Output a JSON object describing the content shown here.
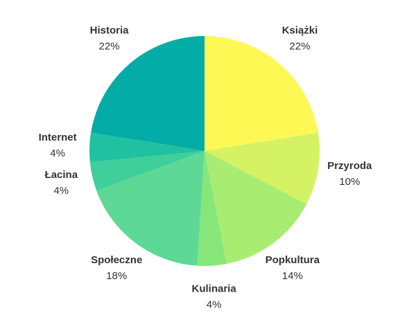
{
  "chart_data": {
    "type": "pie",
    "categories": [
      "Książki",
      "Przyroda",
      "Popkultura",
      "Kulinaria",
      "Społeczne",
      "Łacina",
      "Internet",
      "Historia"
    ],
    "values": [
      22,
      10,
      14,
      4,
      18,
      4,
      4,
      22
    ],
    "value_labels": [
      "22%",
      "10%",
      "14%",
      "4%",
      "18%",
      "4%",
      "4%",
      "22%"
    ],
    "colors": [
      "#fef854",
      "#d4f264",
      "#a8ec72",
      "#86e67a",
      "#5dd896",
      "#3ecf9a",
      "#1fc1a0",
      "#04aca8"
    ]
  }
}
